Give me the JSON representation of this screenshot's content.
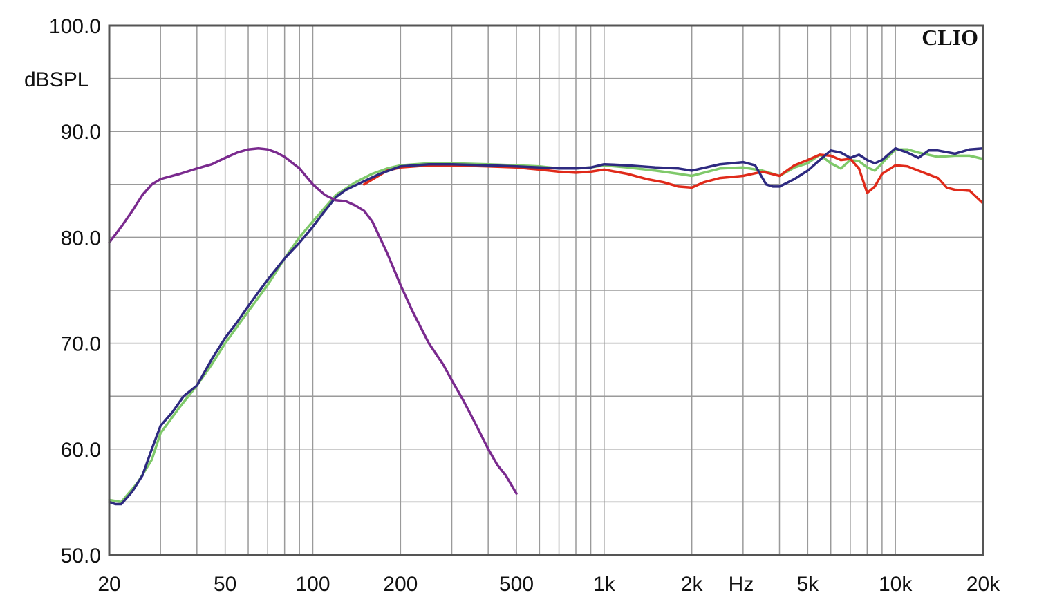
{
  "chart_data": {
    "type": "line",
    "brand": "CLIO",
    "ylabel": "dBSPL",
    "xlabel": "Hz",
    "x_scale": "log",
    "xlim": [
      20,
      20000
    ],
    "ylim": [
      50,
      100
    ],
    "grid": true,
    "y_ticks": [
      {
        "value": 50,
        "label": "50.0"
      },
      {
        "value": 60,
        "label": "60.0"
      },
      {
        "value": 70,
        "label": "70.0"
      },
      {
        "value": 80,
        "label": "80.0"
      },
      {
        "value": 90,
        "label": "90.0"
      },
      {
        "value": 100,
        "label": "100.0"
      }
    ],
    "x_ticks": [
      {
        "value": 20,
        "label": "20"
      },
      {
        "value": 50,
        "label": "50"
      },
      {
        "value": 100,
        "label": "100"
      },
      {
        "value": 200,
        "label": "200"
      },
      {
        "value": 500,
        "label": "500"
      },
      {
        "value": 1000,
        "label": "1k"
      },
      {
        "value": 2000,
        "label": "2k"
      },
      {
        "value": 5000,
        "label": "5k"
      },
      {
        "value": 10000,
        "label": "10k"
      },
      {
        "value": 20000,
        "label": "20k"
      }
    ],
    "series": [
      {
        "color": "#7fc96a",
        "points": [
          [
            20,
            55.2
          ],
          [
            22,
            55.0
          ],
          [
            25,
            56.8
          ],
          [
            28,
            59.0
          ],
          [
            30,
            61.5
          ],
          [
            35,
            64.0
          ],
          [
            40,
            66.0
          ],
          [
            45,
            68.0
          ],
          [
            50,
            70.0
          ],
          [
            60,
            73.0
          ],
          [
            70,
            75.5
          ],
          [
            80,
            78.0
          ],
          [
            90,
            80.0
          ],
          [
            100,
            81.5
          ],
          [
            120,
            84.0
          ],
          [
            140,
            85.2
          ],
          [
            160,
            86.0
          ],
          [
            180,
            86.5
          ],
          [
            200,
            86.8
          ],
          [
            250,
            87.0
          ],
          [
            300,
            87.0
          ],
          [
            400,
            86.9
          ],
          [
            500,
            86.8
          ],
          [
            600,
            86.7
          ],
          [
            700,
            86.5
          ],
          [
            800,
            86.5
          ],
          [
            900,
            86.6
          ],
          [
            1000,
            86.8
          ],
          [
            1200,
            86.6
          ],
          [
            1500,
            86.3
          ],
          [
            1800,
            86.0
          ],
          [
            2000,
            85.8
          ],
          [
            2500,
            86.5
          ],
          [
            3000,
            86.6
          ],
          [
            3500,
            86.3
          ],
          [
            4000,
            85.8
          ],
          [
            4500,
            86.6
          ],
          [
            5000,
            87.0
          ],
          [
            5500,
            87.8
          ],
          [
            6000,
            87.0
          ],
          [
            6500,
            86.5
          ],
          [
            7000,
            87.3
          ],
          [
            7500,
            87.2
          ],
          [
            8000,
            86.6
          ],
          [
            8500,
            86.3
          ],
          [
            9000,
            87.0
          ],
          [
            10000,
            88.3
          ],
          [
            11000,
            88.3
          ],
          [
            12000,
            88.0
          ],
          [
            14000,
            87.6
          ],
          [
            16000,
            87.7
          ],
          [
            18000,
            87.7
          ],
          [
            20000,
            87.4
          ]
        ]
      },
      {
        "color": "#e02a1a",
        "points": [
          [
            150,
            85.0
          ],
          [
            180,
            86.3
          ],
          [
            200,
            86.6
          ],
          [
            250,
            86.8
          ],
          [
            300,
            86.8
          ],
          [
            400,
            86.7
          ],
          [
            500,
            86.6
          ],
          [
            600,
            86.4
          ],
          [
            700,
            86.2
          ],
          [
            800,
            86.1
          ],
          [
            900,
            86.2
          ],
          [
            1000,
            86.4
          ],
          [
            1200,
            86.0
          ],
          [
            1400,
            85.5
          ],
          [
            1600,
            85.2
          ],
          [
            1800,
            84.8
          ],
          [
            2000,
            84.7
          ],
          [
            2200,
            85.2
          ],
          [
            2500,
            85.6
          ],
          [
            3000,
            85.8
          ],
          [
            3500,
            86.2
          ],
          [
            4000,
            85.8
          ],
          [
            4500,
            86.8
          ],
          [
            5000,
            87.3
          ],
          [
            5500,
            87.8
          ],
          [
            6000,
            87.7
          ],
          [
            6500,
            87.3
          ],
          [
            7000,
            87.4
          ],
          [
            7500,
            86.5
          ],
          [
            8000,
            84.2
          ],
          [
            8500,
            84.8
          ],
          [
            9000,
            86.0
          ],
          [
            10000,
            86.8
          ],
          [
            11000,
            86.7
          ],
          [
            12000,
            86.3
          ],
          [
            14000,
            85.6
          ],
          [
            15000,
            84.7
          ],
          [
            16000,
            84.5
          ],
          [
            18000,
            84.4
          ],
          [
            20000,
            83.2
          ]
        ]
      },
      {
        "color": "#2e2a80",
        "points": [
          [
            20,
            55.0
          ],
          [
            21,
            54.8
          ],
          [
            22,
            54.8
          ],
          [
            24,
            56.0
          ],
          [
            26,
            57.5
          ],
          [
            28,
            60.0
          ],
          [
            30,
            62.2
          ],
          [
            33,
            63.5
          ],
          [
            36,
            65.0
          ],
          [
            40,
            66.0
          ],
          [
            45,
            68.5
          ],
          [
            50,
            70.5
          ],
          [
            55,
            72.0
          ],
          [
            60,
            73.5
          ],
          [
            70,
            76.0
          ],
          [
            80,
            78.0
          ],
          [
            90,
            79.5
          ],
          [
            100,
            81.0
          ],
          [
            110,
            82.5
          ],
          [
            120,
            83.8
          ],
          [
            130,
            84.5
          ],
          [
            150,
            85.3
          ],
          [
            170,
            86.0
          ],
          [
            200,
            86.7
          ],
          [
            250,
            86.9
          ],
          [
            300,
            86.9
          ],
          [
            400,
            86.8
          ],
          [
            500,
            86.7
          ],
          [
            600,
            86.6
          ],
          [
            700,
            86.5
          ],
          [
            800,
            86.5
          ],
          [
            900,
            86.6
          ],
          [
            1000,
            86.9
          ],
          [
            1200,
            86.8
          ],
          [
            1500,
            86.6
          ],
          [
            1800,
            86.5
          ],
          [
            2000,
            86.3
          ],
          [
            2500,
            86.9
          ],
          [
            3000,
            87.1
          ],
          [
            3300,
            86.8
          ],
          [
            3600,
            85.0
          ],
          [
            3800,
            84.8
          ],
          [
            4000,
            84.8
          ],
          [
            4500,
            85.5
          ],
          [
            5000,
            86.3
          ],
          [
            5500,
            87.3
          ],
          [
            6000,
            88.2
          ],
          [
            6500,
            88.0
          ],
          [
            7000,
            87.5
          ],
          [
            7500,
            87.8
          ],
          [
            8000,
            87.3
          ],
          [
            8500,
            87.0
          ],
          [
            9000,
            87.3
          ],
          [
            10000,
            88.4
          ],
          [
            11000,
            88.0
          ],
          [
            12000,
            87.5
          ],
          [
            13000,
            88.2
          ],
          [
            14000,
            88.2
          ],
          [
            16000,
            87.9
          ],
          [
            18000,
            88.3
          ],
          [
            20000,
            88.4
          ]
        ]
      },
      {
        "color": "#7a2a8e",
        "points": [
          [
            20,
            79.5
          ],
          [
            22,
            81.0
          ],
          [
            24,
            82.5
          ],
          [
            26,
            84.0
          ],
          [
            28,
            85.0
          ],
          [
            30,
            85.5
          ],
          [
            35,
            86.0
          ],
          [
            40,
            86.5
          ],
          [
            45,
            86.9
          ],
          [
            50,
            87.5
          ],
          [
            55,
            88.0
          ],
          [
            60,
            88.3
          ],
          [
            65,
            88.4
          ],
          [
            70,
            88.3
          ],
          [
            75,
            88.0
          ],
          [
            80,
            87.6
          ],
          [
            90,
            86.5
          ],
          [
            100,
            85.0
          ],
          [
            110,
            84.0
          ],
          [
            120,
            83.5
          ],
          [
            130,
            83.4
          ],
          [
            140,
            83.0
          ],
          [
            150,
            82.5
          ],
          [
            160,
            81.5
          ],
          [
            180,
            78.5
          ],
          [
            200,
            75.5
          ],
          [
            220,
            73.0
          ],
          [
            250,
            70.0
          ],
          [
            280,
            68.0
          ],
          [
            300,
            66.5
          ],
          [
            330,
            64.5
          ],
          [
            360,
            62.5
          ],
          [
            400,
            60.0
          ],
          [
            430,
            58.5
          ],
          [
            460,
            57.5
          ],
          [
            500,
            55.8
          ]
        ]
      }
    ]
  }
}
